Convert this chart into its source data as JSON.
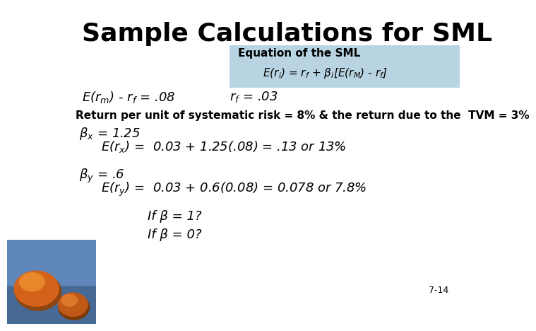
{
  "title": "Sample Calculations for SML",
  "bg_color": "#ffffff",
  "box_color": "#b8d4e3",
  "equation_label": "Equation of the SML",
  "equation": "E(r$_i$) = r$_f$ + β$_i$[E(r$_M$) - r$_f$]",
  "line1_left": "E(r$_m$) - r$_f$ = .08",
  "line1_right": "r$_f$ = .03",
  "line2": "Return per unit of systematic risk = 8% & the return due to the  TVM = 3%",
  "line3a": "β$_x$ = 1.25",
  "line3b": "E(r$_x$) =  0.03 + 1.25(.08) = .13 or 13%",
  "line4a": "β$_y$ = .6",
  "line4b": "E(r$_y$) =  0.03 + 0.6(0.08) = 0.078 or 7.8%",
  "line5a": "If β = 1?",
  "line5b": "If β = 0?",
  "page_num": "7-14",
  "title_fontsize": 26,
  "body_fontsize": 13,
  "label_fontsize": 11,
  "small_fontsize": 10
}
